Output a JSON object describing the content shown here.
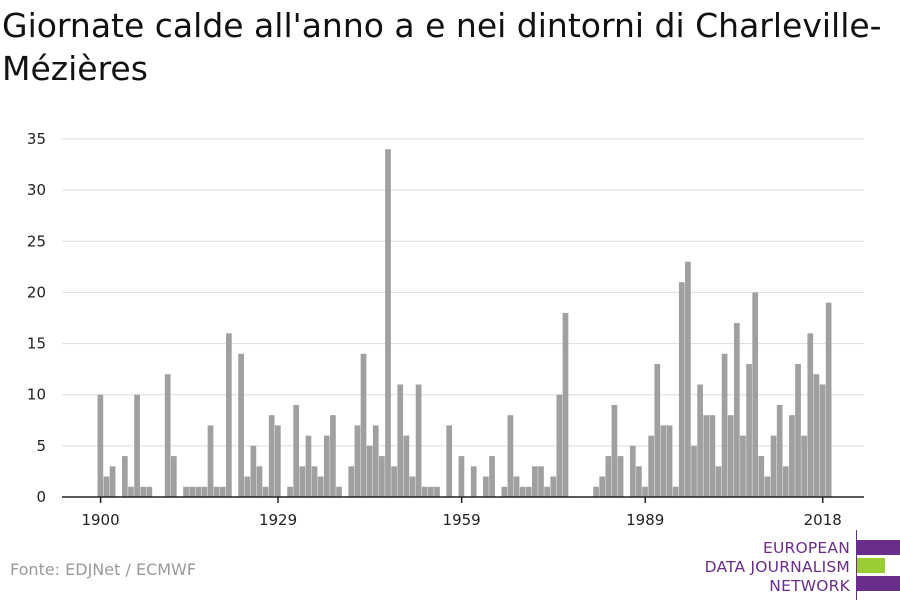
{
  "title": "Giornate calde all'anno a e nei dintorni di Charleville-Mézières",
  "source": "Fonte: EDJNet / ECMWF",
  "logo": {
    "lines": [
      "EUROPEAN",
      "DATA JOURNALISM",
      "NETWORK"
    ],
    "colors": {
      "text": "#6b2d8c",
      "bar_purple": "#6b2d8c",
      "bar_green": "#9acd32"
    }
  },
  "colors": {
    "bars": "#a0a0a0",
    "grid": "#dddddd",
    "axis": "#222222"
  },
  "chart_data": {
    "type": "bar",
    "title": "Giornate calde all'anno a e nei dintorni di Charleville-Mézières",
    "xlabel": "",
    "ylabel": "",
    "x_start_year": 1900,
    "x_end_year": 2019,
    "x_ticks": [
      1900,
      1929,
      1959,
      1989,
      2018
    ],
    "y_ticks": [
      0,
      5,
      10,
      15,
      20,
      25,
      30,
      35
    ],
    "ylim": [
      0,
      35
    ],
    "grid": true,
    "values": [
      10,
      2,
      3,
      0,
      4,
      1,
      10,
      1,
      1,
      0,
      0,
      12,
      4,
      0,
      1,
      1,
      1,
      1,
      7,
      1,
      1,
      16,
      0,
      14,
      2,
      5,
      3,
      1,
      8,
      7,
      0,
      1,
      9,
      3,
      6,
      3,
      2,
      6,
      8,
      1,
      0,
      3,
      7,
      14,
      5,
      7,
      4,
      34,
      3,
      11,
      6,
      2,
      11,
      1,
      1,
      1,
      0,
      7,
      0,
      4,
      0,
      3,
      0,
      2,
      4,
      0,
      1,
      8,
      2,
      1,
      1,
      3,
      3,
      1,
      2,
      10,
      18,
      0,
      0,
      0,
      0,
      1,
      2,
      4,
      9,
      4,
      0,
      5,
      3,
      1,
      6,
      13,
      7,
      7,
      1,
      21,
      23,
      5,
      11,
      8,
      8,
      3,
      14,
      8,
      17,
      6,
      13,
      20,
      4,
      2,
      6,
      9,
      3,
      8,
      13,
      6,
      16,
      12,
      11,
      19
    ]
  }
}
